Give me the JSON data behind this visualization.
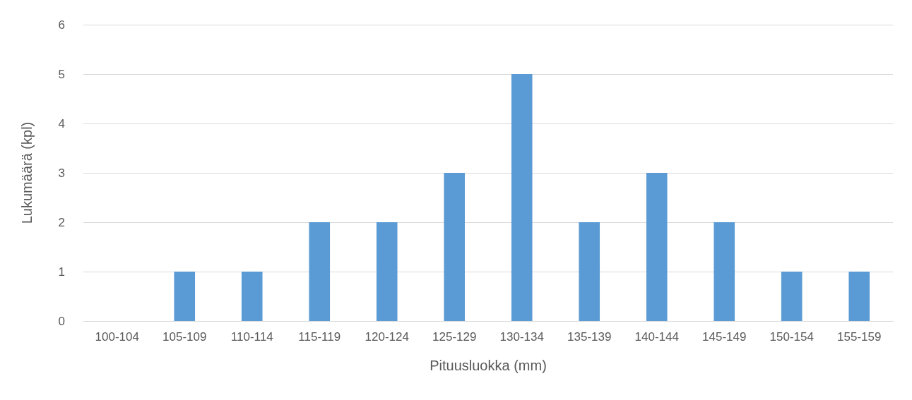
{
  "chart_data": {
    "type": "bar",
    "xlabel": "Pituusluokka (mm)",
    "ylabel": "Lukumäärä (kpl)",
    "categories": [
      "100-104",
      "105-109",
      "110-114",
      "115-119",
      "120-124",
      "125-129",
      "130-134",
      "135-139",
      "140-144",
      "145-149",
      "150-154",
      "155-159"
    ],
    "values": [
      0,
      1,
      1,
      2,
      2,
      3,
      5,
      2,
      3,
      2,
      1,
      1
    ],
    "color": "#5b9bd5",
    "ylim": [
      0,
      6
    ],
    "yticks": [
      0,
      1,
      2,
      3,
      4,
      5,
      6
    ],
    "grid": "y"
  }
}
